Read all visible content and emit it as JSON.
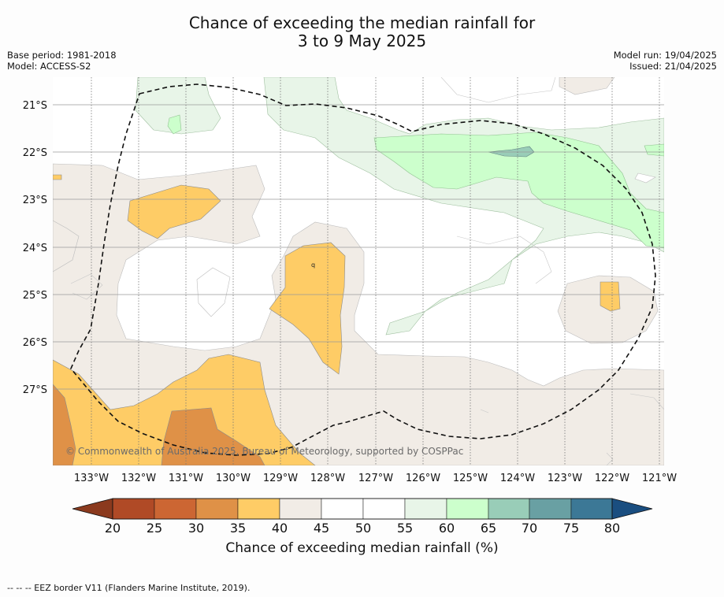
{
  "title": {
    "line1": "Chance of exceeding the median rainfall for",
    "line2": "3 to 9 May 2025"
  },
  "meta": {
    "base_period": "Base period: 1981-2018",
    "model": "Model: ACCESS-S2",
    "model_run": "Model run: 19/04/2025",
    "issued": "Issued: 21/04/2025"
  },
  "map": {
    "lat_labels": [
      "21°S",
      "22°S",
      "23°S",
      "24°S",
      "25°S",
      "26°S",
      "27°S"
    ],
    "lon_labels": [
      "133°W",
      "132°W",
      "131°W",
      "130°W",
      "129°W",
      "128°W",
      "127°W",
      "126°W",
      "125°W",
      "124°W",
      "123°W",
      "122°W",
      "121°W"
    ],
    "copyright": "© Commonwealth of Australia 2025, Bureau of Meteorology, supported by COSPPac",
    "contour_label": "q",
    "colors": {
      "c20": "#8b3a1e",
      "c25": "#b04a26",
      "c30": "#cc6633",
      "c35": "#df9147",
      "c40": "#fecc66",
      "c45": "#f1ece6",
      "c50": "#ffffff",
      "c55": "#ffffff",
      "c60": "#e8f5e8",
      "c65": "#ccffcc",
      "c70": "#99cdb8",
      "c75": "#69a0a3",
      "c80": "#3c7896",
      "c85": "#1a4e80"
    }
  },
  "colorbar": {
    "ticks": [
      "20",
      "25",
      "30",
      "35",
      "40",
      "45",
      "50",
      "55",
      "60",
      "65",
      "70",
      "75",
      "80"
    ],
    "label": "Chance of exceeding median rainfall (%)"
  },
  "footnote": "-- -- -- EEZ border V11 (Flanders Marine Institute, 2019)."
}
